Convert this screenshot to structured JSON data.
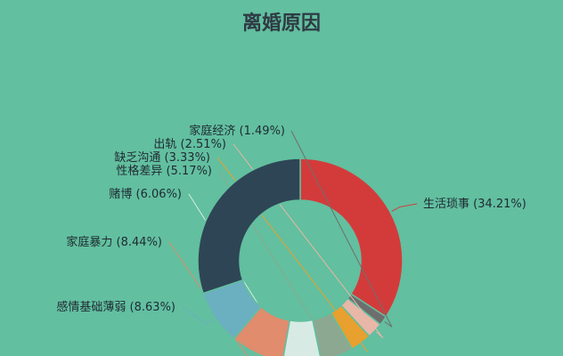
{
  "chart_data": {
    "type": "pie",
    "donut": true,
    "title": "离婚原因",
    "slices": [
      {
        "label": "生活琐事",
        "value": 34.21,
        "display": "生活琐事 (34.21%)",
        "color": "#d33b3b"
      },
      {
        "label": "家庭经济",
        "value": 1.49,
        "display": "家庭经济 (1.49%)",
        "color": "#6e6e6e"
      },
      {
        "label": "出轨",
        "value": 2.51,
        "display": "出轨 (2.51%)",
        "color": "#e8b7a7"
      },
      {
        "label": "缺乏沟通",
        "value": 3.33,
        "display": "缺乏沟通 (3.33%)",
        "color": "#e8a02e"
      },
      {
        "label": "性格差异",
        "value": 5.17,
        "display": "性格差异 (5.17%)",
        "color": "#8da891"
      },
      {
        "label": "赌博",
        "value": 6.06,
        "display": "赌博 (6.06%)",
        "color": "#d7ebe4"
      },
      {
        "label": "家庭暴力",
        "value": 8.44,
        "display": "家庭暴力 (8.44%)",
        "color": "#e08c6d"
      },
      {
        "label": "感情基础薄弱",
        "value": 8.63,
        "display": "感情基础薄弱 (8.63%)",
        "color": "#6bb0c0"
      },
      {
        "label": "",
        "value": 30.16,
        "display": "",
        "color": "#2e4555"
      }
    ]
  }
}
